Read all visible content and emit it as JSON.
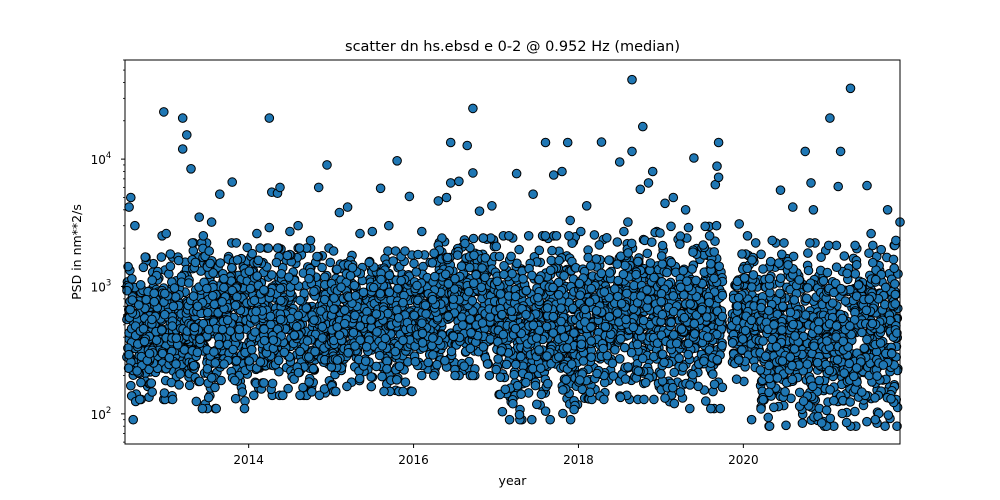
{
  "chart_data": {
    "type": "scatter",
    "title": "scatter dn hs.ebsd e 0-2 @ 0.952 Hz (median)",
    "xlabel": "year",
    "ylabel": "PSD in nm**2/s",
    "x_ticks": [
      "2014",
      "2016",
      "2018",
      "2020"
    ],
    "y_ticks": [
      {
        "base": "10",
        "exp": "2",
        "value": 100
      },
      {
        "base": "10",
        "exp": "3",
        "value": 1000
      },
      {
        "base": "10",
        "exp": "4",
        "value": 10000
      }
    ],
    "xlim": [
      2012.5,
      2021.9
    ],
    "ylim": [
      58,
      60000
    ],
    "y_scale": "log",
    "grid": false,
    "marker_color": "#1f77b4",
    "marker_edge_color": "#000000",
    "series": [
      {
        "points": [
          [
            2012.55,
            4200
          ],
          [
            2012.57,
            5000
          ],
          [
            2012.62,
            3000
          ],
          [
            2012.6,
            90
          ],
          [
            2012.63,
            125
          ],
          [
            2012.68,
            130
          ],
          [
            2012.95,
            2500
          ],
          [
            2012.97,
            23500
          ],
          [
            2013.0,
            2600
          ],
          [
            2013.05,
            1800
          ],
          [
            2013.15,
            1600
          ],
          [
            2013.2,
            21000
          ],
          [
            2013.2,
            12000
          ],
          [
            2013.25,
            15500
          ],
          [
            2013.3,
            8400
          ],
          [
            2013.4,
            3500
          ],
          [
            2013.45,
            2500
          ],
          [
            2013.55,
            3200
          ],
          [
            2013.65,
            5300
          ],
          [
            2013.8,
            6600
          ],
          [
            2013.85,
            2200
          ],
          [
            2013.95,
            110
          ],
          [
            2014.1,
            2600
          ],
          [
            2014.25,
            2900
          ],
          [
            2014.25,
            21000
          ],
          [
            2014.28,
            5500
          ],
          [
            2014.35,
            5400
          ],
          [
            2014.38,
            6000
          ],
          [
            2014.5,
            2700
          ],
          [
            2014.6,
            3000
          ],
          [
            2014.75,
            2300
          ],
          [
            2014.85,
            6000
          ],
          [
            2014.95,
            9000
          ],
          [
            2015.1,
            3800
          ],
          [
            2015.2,
            4200
          ],
          [
            2015.35,
            2600
          ],
          [
            2015.5,
            2700
          ],
          [
            2015.6,
            5900
          ],
          [
            2015.7,
            3000
          ],
          [
            2015.8,
            9700
          ],
          [
            2015.95,
            5100
          ],
          [
            2016.1,
            2700
          ],
          [
            2016.3,
            4700
          ],
          [
            2016.4,
            5000
          ],
          [
            2016.45,
            6500
          ],
          [
            2016.45,
            13500
          ],
          [
            2016.55,
            6700
          ],
          [
            2016.65,
            12800
          ],
          [
            2016.72,
            25000
          ],
          [
            2016.72,
            7800
          ],
          [
            2016.8,
            3900
          ],
          [
            2016.95,
            4300
          ],
          [
            2017.25,
            7700
          ],
          [
            2017.45,
            5300
          ],
          [
            2017.6,
            13500
          ],
          [
            2017.7,
            7500
          ],
          [
            2017.8,
            8000
          ],
          [
            2017.87,
            13500
          ],
          [
            2017.9,
            3300
          ],
          [
            2018.1,
            4300
          ],
          [
            2018.28,
            13600
          ],
          [
            2018.5,
            9500
          ],
          [
            2018.6,
            3200
          ],
          [
            2018.65,
            42000
          ],
          [
            2018.65,
            11500
          ],
          [
            2018.75,
            5800
          ],
          [
            2018.78,
            18000
          ],
          [
            2018.85,
            6500
          ],
          [
            2018.9,
            8000
          ],
          [
            2019.05,
            4500
          ],
          [
            2019.15,
            5000
          ],
          [
            2019.3,
            4000
          ],
          [
            2019.4,
            10200
          ],
          [
            2019.7,
            13500
          ],
          [
            2019.68,
            8800
          ],
          [
            2019.66,
            6300
          ],
          [
            2019.7,
            7200
          ],
          [
            2019.95,
            3100
          ],
          [
            2020.05,
            2500
          ],
          [
            2020.1,
            90
          ],
          [
            2020.15,
            2200
          ],
          [
            2020.35,
            2300
          ],
          [
            2020.45,
            5700
          ],
          [
            2020.6,
            4200
          ],
          [
            2020.75,
            11500
          ],
          [
            2020.82,
            6500
          ],
          [
            2020.85,
            4000
          ],
          [
            2020.95,
            85
          ],
          [
            2021.05,
            21000
          ],
          [
            2021.15,
            6100
          ],
          [
            2021.18,
            11500
          ],
          [
            2021.3,
            36000
          ],
          [
            2021.5,
            6200
          ],
          [
            2021.55,
            2600
          ],
          [
            2021.6,
            90
          ],
          [
            2021.75,
            4000
          ],
          [
            2021.85,
            2300
          ],
          [
            2021.9,
            3200
          ]
        ],
        "dense_band": {
          "x_range": [
            2012.52,
            2021.88
          ],
          "typical_low": 150,
          "typical_high": 1500,
          "min": 80,
          "max": 3000,
          "segments": [
            {
              "x": [
                2012.52,
                2013.3
              ],
              "low": 130,
              "high": 1700
            },
            {
              "x": [
                2013.3,
                2014.0
              ],
              "low": 110,
              "high": 2200
            },
            {
              "x": [
                2014.0,
                2015.0
              ],
              "low": 140,
              "high": 2000
            },
            {
              "x": [
                2015.0,
                2016.0
              ],
              "low": 150,
              "high": 1900
            },
            {
              "x": [
                2016.0,
                2017.0
              ],
              "low": 200,
              "high": 2400
            },
            {
              "x": [
                2017.0,
                2018.0
              ],
              "low": 90,
              "high": 2500
            },
            {
              "x": [
                2018.0,
                2019.0
              ],
              "low": 130,
              "high": 2700
            },
            {
              "x": [
                2019.0,
                2019.75
              ],
              "low": 110,
              "high": 3000
            },
            {
              "x": [
                2019.85,
                2020.2
              ],
              "low": 180,
              "high": 1800
            },
            {
              "x": [
                2020.2,
                2021.0
              ],
              "low": 80,
              "high": 2200
            },
            {
              "x": [
                2021.0,
                2021.88
              ],
              "low": 80,
              "high": 2100
            }
          ]
        }
      }
    ]
  }
}
